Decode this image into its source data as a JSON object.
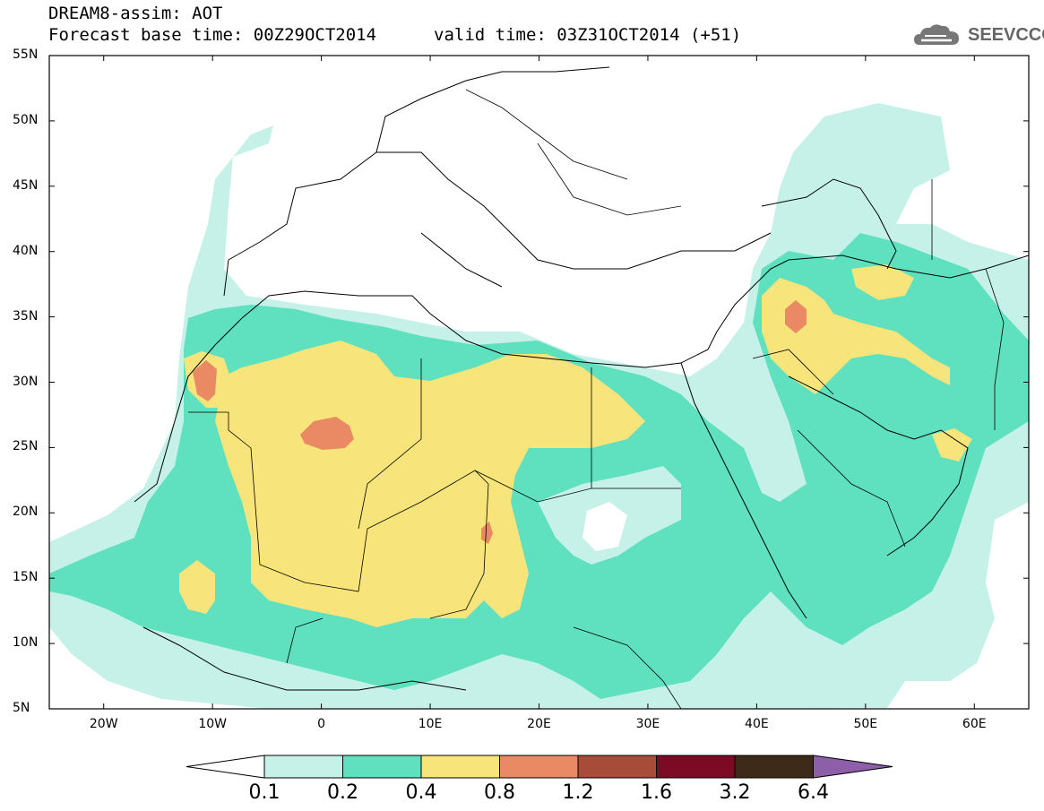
{
  "header": {
    "title": "DREAM8-assim: AOT",
    "base_time": "Forecast base time: 00Z29OCT2014",
    "valid_time": "valid time: 03Z31OCT2014 (+51)",
    "logo_text": "SEEVCCC",
    "logo_icon": "cloud-logo-icon"
  },
  "map": {
    "lon_range": [
      -25,
      65
    ],
    "lat_range": [
      5,
      55
    ],
    "lat_labels": [
      "55N",
      "50N",
      "45N",
      "40N",
      "35N",
      "30N",
      "25N",
      "20N",
      "15N",
      "10N",
      "5N"
    ],
    "lon_labels": [
      "20W",
      "10W",
      "0",
      "10E",
      "20E",
      "30E",
      "40E",
      "50E",
      "60E"
    ],
    "lat_values": [
      55,
      50,
      45,
      40,
      35,
      30,
      25,
      20,
      15,
      10,
      5
    ],
    "lon_values": [
      -20,
      -10,
      0,
      10,
      20,
      30,
      40,
      50,
      60
    ]
  },
  "colorbar": {
    "labels": [
      "0.1",
      "0.2",
      "0.4",
      "0.8",
      "1.2",
      "1.6",
      "3.2",
      "6.4"
    ],
    "colors": {
      "lt0.1": "#ffffff",
      "0.1-0.2": "#c6f1e9",
      "0.2-0.4": "#5fe0be",
      "0.4-0.8": "#f7e47b",
      "0.8-1.2": "#e98a65",
      "1.2-1.6": "#a84c3a",
      "1.6-3.2": "#7c0a24",
      "3.2-6.4": "#3e2a18",
      "gt6.4": "#8c5fa8"
    }
  }
}
